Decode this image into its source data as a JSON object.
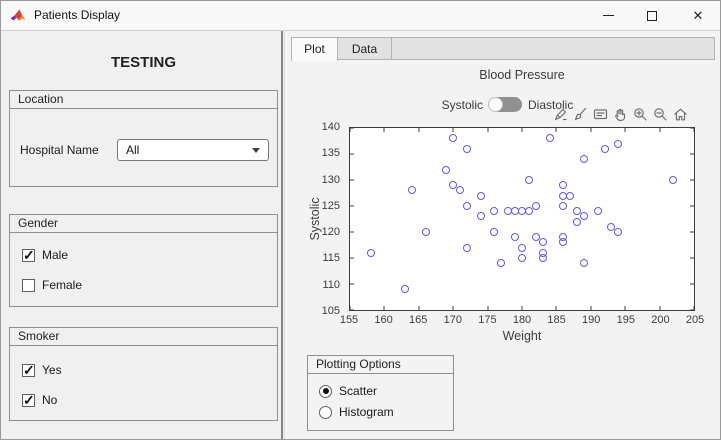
{
  "window": {
    "title": "Patients Display",
    "app_icon": "matlab-logo-icon",
    "controls": [
      "minimize",
      "maximize",
      "close"
    ]
  },
  "left_panel": {
    "heading": "TESTING",
    "location_panel": {
      "title": "Location",
      "field_label": "Hospital Name",
      "dropdown_value": "All"
    },
    "gender_panel": {
      "title": "Gender",
      "options": [
        {
          "label": "Male",
          "checked": true
        },
        {
          "label": "Female",
          "checked": false
        }
      ]
    },
    "smoker_panel": {
      "title": "Smoker",
      "options": [
        {
          "label": "Yes",
          "checked": true
        },
        {
          "label": "No",
          "checked": true
        }
      ]
    }
  },
  "right_panel": {
    "tabs": [
      {
        "label": "Plot",
        "active": true
      },
      {
        "label": "Data",
        "active": false
      }
    ],
    "switch": {
      "left_label": "Systolic",
      "right_label": "Diastolic",
      "selected": "Systolic"
    },
    "toolbar_icons": [
      "export",
      "brush",
      "data-tips",
      "pan",
      "zoom-in",
      "zoom-out",
      "restore-view"
    ],
    "plotting_options": {
      "title": "Plotting Options",
      "options": [
        {
          "label": "Scatter",
          "selected": true
        },
        {
          "label": "Histogram",
          "selected": false
        }
      ]
    }
  },
  "chart_data": {
    "type": "scatter",
    "title": "Blood Pressure",
    "xlabel": "Weight",
    "ylabel": "Systolic",
    "xlim": [
      155,
      205
    ],
    "ylim": [
      105,
      140
    ],
    "xticks": [
      155,
      160,
      165,
      170,
      175,
      180,
      185,
      190,
      195,
      200,
      205
    ],
    "yticks": [
      105,
      110,
      115,
      120,
      125,
      130,
      135,
      140
    ],
    "grid": false,
    "legend": null,
    "marker": "circle",
    "marker_color": "#5d5dd5",
    "points": [
      [
        158,
        116
      ],
      [
        163,
        109
      ],
      [
        164,
        128
      ],
      [
        166,
        120
      ],
      [
        169,
        132
      ],
      [
        170,
        138
      ],
      [
        170,
        129
      ],
      [
        171,
        128
      ],
      [
        172,
        136
      ],
      [
        172,
        125
      ],
      [
        172,
        117
      ],
      [
        174,
        127
      ],
      [
        174,
        123
      ],
      [
        176,
        124
      ],
      [
        176,
        120
      ],
      [
        177,
        114
      ],
      [
        178,
        124
      ],
      [
        179,
        124
      ],
      [
        179,
        119
      ],
      [
        180,
        124
      ],
      [
        180,
        117
      ],
      [
        180,
        115
      ],
      [
        181,
        130
      ],
      [
        181,
        124
      ],
      [
        182,
        125
      ],
      [
        182,
        119
      ],
      [
        183,
        118
      ],
      [
        183,
        116
      ],
      [
        183,
        115
      ],
      [
        184,
        138
      ],
      [
        186,
        129
      ],
      [
        186,
        127
      ],
      [
        186,
        125
      ],
      [
        186,
        119
      ],
      [
        186,
        118
      ],
      [
        187,
        127
      ],
      [
        188,
        124
      ],
      [
        188,
        122
      ],
      [
        189,
        134
      ],
      [
        189,
        123
      ],
      [
        189,
        114
      ],
      [
        191,
        124
      ],
      [
        192,
        136
      ],
      [
        193,
        121
      ],
      [
        194,
        137
      ],
      [
        194,
        120
      ],
      [
        202,
        130
      ]
    ]
  }
}
